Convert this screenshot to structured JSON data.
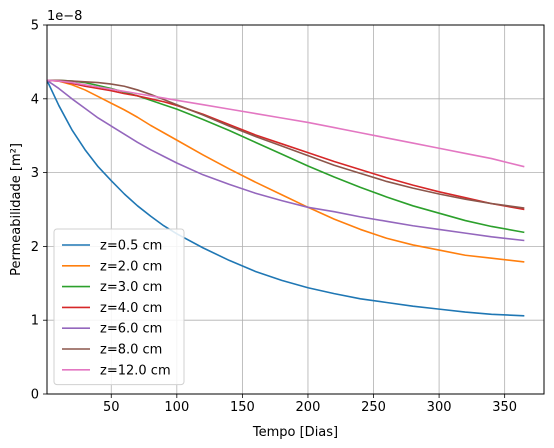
{
  "chart_data": {
    "type": "line",
    "xlabel": "Tempo [Dias]",
    "ylabel": "Permeabilidade [m²]",
    "y_offset_label": "1e−8",
    "xlim": [
      1,
      380
    ],
    "ylim": [
      0,
      5
    ],
    "x_ticks": [
      50,
      100,
      150,
      200,
      250,
      300,
      350
    ],
    "y_ticks": [
      0,
      1,
      2,
      3,
      4,
      5
    ],
    "grid": true,
    "legend_position": "lower left",
    "x": [
      1,
      10,
      20,
      30,
      40,
      50,
      60,
      70,
      80,
      90,
      100,
      120,
      140,
      160,
      180,
      200,
      220,
      240,
      260,
      280,
      300,
      320,
      340,
      365
    ],
    "series": [
      {
        "name": "z=0.5 cm",
        "color": "#1f77b4",
        "values": [
          4.25,
          3.91,
          3.58,
          3.31,
          3.08,
          2.89,
          2.71,
          2.55,
          2.41,
          2.28,
          2.17,
          1.98,
          1.81,
          1.66,
          1.54,
          1.44,
          1.36,
          1.29,
          1.24,
          1.19,
          1.15,
          1.11,
          1.08,
          1.06
        ]
      },
      {
        "name": "z=2.0 cm",
        "color": "#ff7f0e",
        "values": [
          4.25,
          4.24,
          4.19,
          4.12,
          4.03,
          3.94,
          3.85,
          3.75,
          3.64,
          3.54,
          3.44,
          3.24,
          3.05,
          2.87,
          2.7,
          2.53,
          2.37,
          2.23,
          2.11,
          2.02,
          1.95,
          1.88,
          1.84,
          1.79
        ]
      },
      {
        "name": "z=3.0 cm",
        "color": "#2ca02c",
        "values": [
          4.25,
          4.25,
          4.24,
          4.22,
          4.18,
          4.14,
          4.09,
          4.04,
          3.98,
          3.92,
          3.86,
          3.72,
          3.57,
          3.41,
          3.25,
          3.09,
          2.94,
          2.8,
          2.67,
          2.55,
          2.45,
          2.35,
          2.27,
          2.19
        ]
      },
      {
        "name": "z=4.0 cm",
        "color": "#d62728",
        "values": [
          4.25,
          4.24,
          4.21,
          4.17,
          4.14,
          4.11,
          4.07,
          4.04,
          4.0,
          3.96,
          3.91,
          3.79,
          3.65,
          3.51,
          3.39,
          3.27,
          3.15,
          3.04,
          2.93,
          2.83,
          2.74,
          2.66,
          2.58,
          2.5
        ]
      },
      {
        "name": "z=6.0 cm",
        "color": "#9467bd",
        "values": [
          4.25,
          4.14,
          4.0,
          3.87,
          3.74,
          3.63,
          3.52,
          3.41,
          3.31,
          3.22,
          3.13,
          2.97,
          2.84,
          2.72,
          2.62,
          2.53,
          2.47,
          2.4,
          2.34,
          2.28,
          2.23,
          2.18,
          2.13,
          2.08
        ]
      },
      {
        "name": "z=8.0 cm",
        "color": "#8c564b",
        "values": [
          4.25,
          4.25,
          4.24,
          4.23,
          4.22,
          4.2,
          4.17,
          4.12,
          4.06,
          3.99,
          3.92,
          3.78,
          3.63,
          3.49,
          3.36,
          3.23,
          3.1,
          2.99,
          2.88,
          2.79,
          2.71,
          2.64,
          2.58,
          2.52
        ]
      },
      {
        "name": "z=12.0 cm",
        "color": "#e377c2",
        "values": [
          4.25,
          4.24,
          4.22,
          4.19,
          4.16,
          4.13,
          4.1,
          4.07,
          4.04,
          4.01,
          3.98,
          3.92,
          3.86,
          3.8,
          3.74,
          3.68,
          3.61,
          3.54,
          3.47,
          3.4,
          3.33,
          3.26,
          3.19,
          3.08
        ]
      }
    ]
  }
}
